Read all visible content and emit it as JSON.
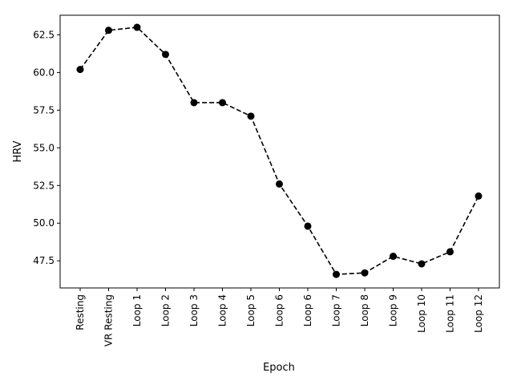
{
  "chart_data": {
    "type": "line",
    "title": "",
    "xlabel": "Epoch",
    "ylabel": "HRV",
    "categories": [
      "Resting",
      "VR Resting",
      "Loop 1",
      "Loop 2",
      "Loop 3",
      "Loop 4",
      "Loop 5",
      "Loop 6",
      "Loop 6",
      "Loop 7",
      "Loop 8",
      "Loop 9",
      "Loop 10",
      "Loop 11",
      "Loop 12"
    ],
    "series": [
      {
        "values": [
          60.2,
          62.8,
          63.0,
          61.2,
          58.0,
          58.0,
          57.1,
          52.6,
          49.8,
          46.6,
          46.7,
          47.8,
          47.3,
          48.1,
          51.8
        ],
        "color": "#000000",
        "line_style": "dashed",
        "marker": "circle"
      }
    ],
    "ylim": [
      45.7,
      63.8
    ],
    "yticks": [
      47.5,
      50.0,
      52.5,
      55.0,
      57.5,
      60.0,
      62.5
    ],
    "grid": false
  }
}
